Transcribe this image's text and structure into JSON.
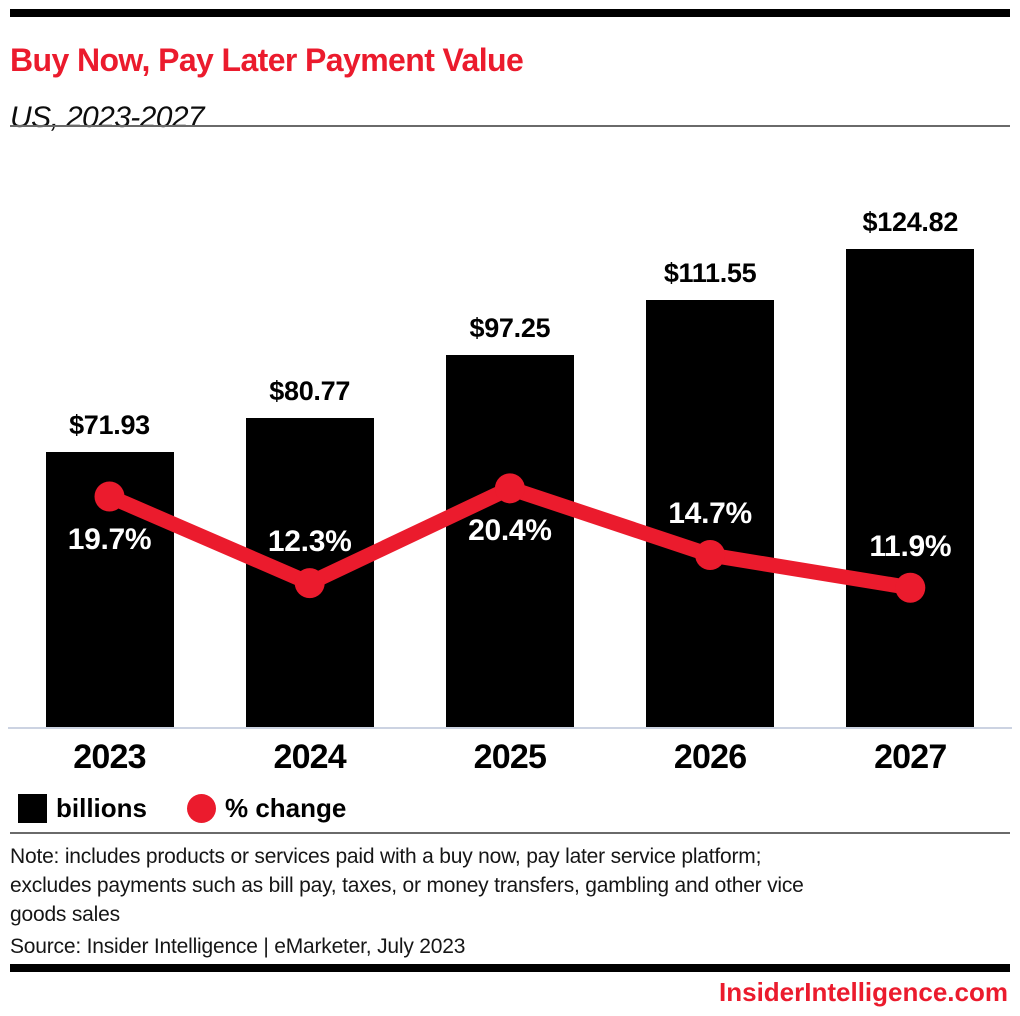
{
  "header": {
    "title": "Buy Now, Pay Later Payment Value",
    "subtitle": "US, 2023-2027"
  },
  "legend": {
    "bars_label": "billions",
    "line_label": "% change"
  },
  "footer": {
    "note_lines": [
      "Note: includes products or services paid with a buy now, pay later service platform;",
      "excludes payments such as bill pay, taxes, or money transfers, gambling and other vice",
      "goods sales"
    ],
    "source": "Source: Insider Intelligence | eMarketer, July 2023",
    "branding": "InsiderIntelligence.com"
  },
  "colors": {
    "accent_red": "#eb1b2d",
    "bar_black": "#000000",
    "axis_line": "#ccd3e2",
    "divider_gray": "#6a6a6a",
    "note_ink": "#161616"
  },
  "chart_data": {
    "type": "bar",
    "combo": "bar+line",
    "title": "Buy Now, Pay Later Payment Value",
    "subtitle": "US, 2023-2027",
    "categories": [
      "2023",
      "2024",
      "2025",
      "2026",
      "2027"
    ],
    "series": [
      {
        "name": "billions",
        "type": "bar",
        "values": [
          71.93,
          80.77,
          97.25,
          111.55,
          124.82
        ],
        "labels": [
          "$71.93",
          "$80.77",
          "$97.25",
          "$111.55",
          "$124.82"
        ],
        "color": "#000000",
        "unit": "US$ billions"
      },
      {
        "name": "% change",
        "type": "line",
        "values": [
          19.7,
          12.3,
          20.4,
          14.7,
          11.9
        ],
        "labels": [
          "19.7%",
          "12.3%",
          "20.4%",
          "14.7%",
          "11.9%"
        ],
        "color": "#eb1b2d",
        "label_placement": [
          "below",
          "above",
          "below",
          "above",
          "above"
        ]
      }
    ],
    "xlabel": "",
    "ylabel": "",
    "grid": false,
    "legend_position": "bottom-left",
    "bar_axis_min": 0
  }
}
